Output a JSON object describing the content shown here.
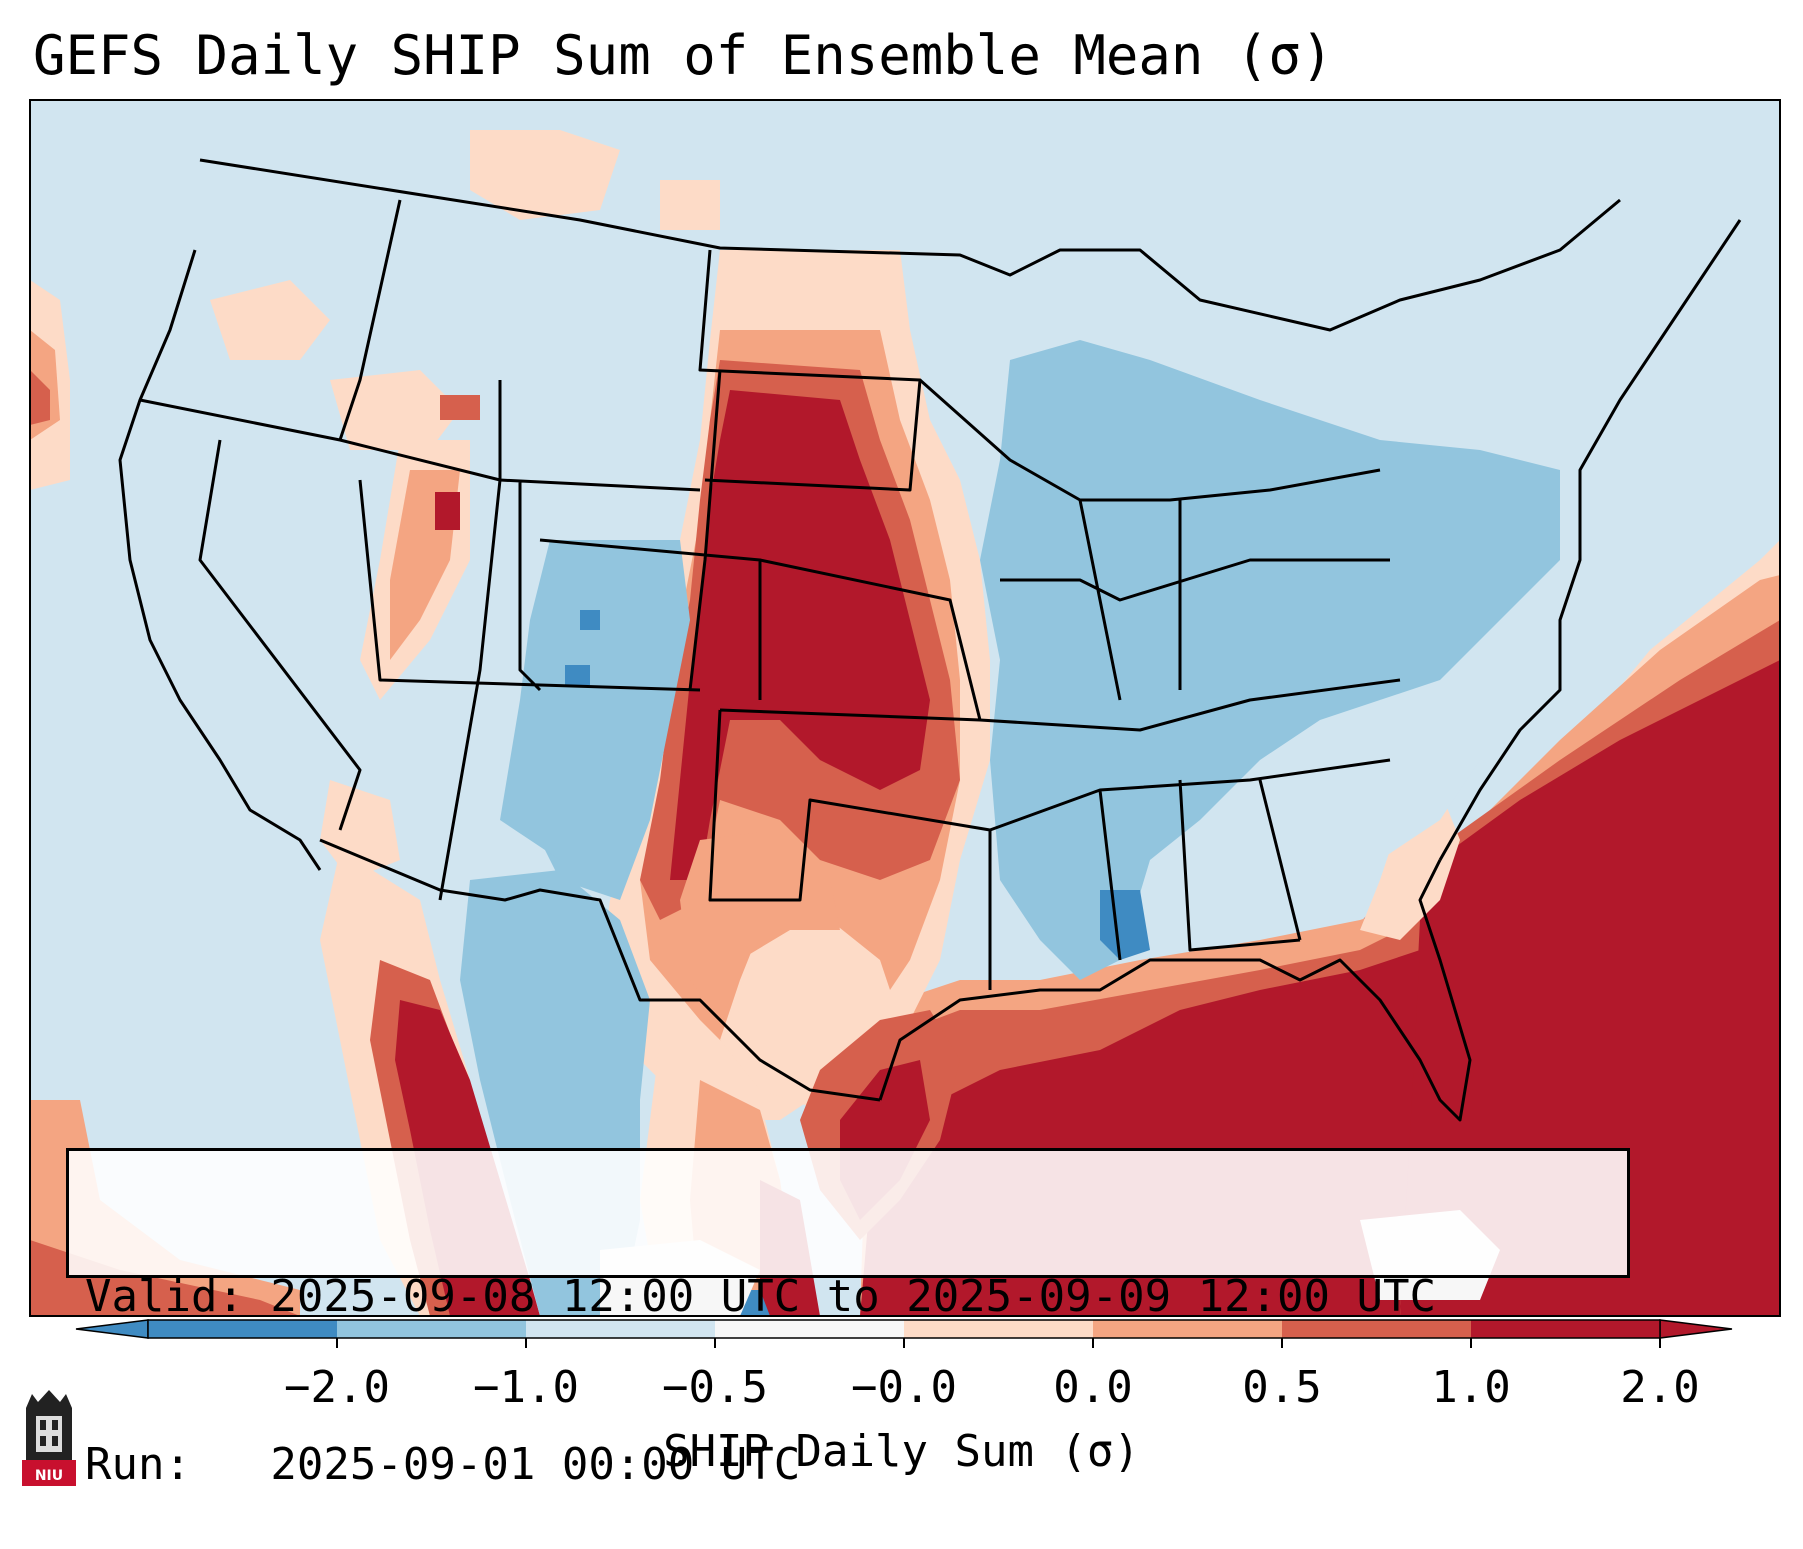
{
  "title": "GEFS Daily SHIP Sum of Ensemble Mean (σ)",
  "info": {
    "valid_line": "Valid: 2025-09-08 12:00 UTC to 2025-09-09 12:00 UTC",
    "run_line": "Run:   2025-09-01 00:00 UTC"
  },
  "colorbar": {
    "label": "SHIP Daily Sum (σ)",
    "tick_labels": [
      "−2.0",
      "−1.0",
      "−0.5",
      "−0.0",
      "0.0",
      "0.5",
      "1.0",
      "2.0"
    ],
    "colors": [
      "#3f8bc2",
      "#92c5de",
      "#d1e5f0",
      "#f7f7f7",
      "#fddbc7",
      "#f4a582",
      "#d6604d",
      "#b2182b"
    ],
    "extend": "both"
  },
  "logo": {
    "text": "NIU",
    "icon": "university-tower-icon"
  },
  "chart_data": {
    "type": "heatmap",
    "title": "GEFS Daily SHIP Sum of Ensemble Mean (σ)",
    "variable": "SHIP Daily Sum (σ)",
    "levels": [
      -2.0,
      -1.0,
      -0.5,
      0.0,
      0.0,
      0.5,
      1.0,
      2.0
    ],
    "regions": [
      {
        "name": "background-near-normal-negative",
        "class": -0.25
      },
      {
        "name": "northern-plains-core",
        "class": 2.0
      },
      {
        "name": "central-plains-kansas-oklahoma",
        "class": 2.0
      },
      {
        "name": "eastern-colorado-new-mexico-border",
        "class": 2.0
      },
      {
        "name": "texas-panhandle-west-texas",
        "class": 0.75
      },
      {
        "name": "central-texas",
        "class": 0.25
      },
      {
        "name": "gulf-of-mexico",
        "class": 2.0
      },
      {
        "name": "western-atlantic",
        "class": 2.0
      },
      {
        "name": "mexico-sierra-madre-oriental",
        "class": 2.0
      },
      {
        "name": "great-lakes-ohio-valley",
        "class": -0.75
      },
      {
        "name": "southeast-us",
        "class": -0.75
      },
      {
        "name": "lower-mississippi-valley",
        "class": -1.5
      },
      {
        "name": "colorado-western-kansas-strip",
        "class": -0.75
      },
      {
        "name": "northern-mexico-plateau",
        "class": -0.75
      },
      {
        "name": "utah-wasatch",
        "class": 0.75
      },
      {
        "name": "pacific-northwest-patches",
        "class": 0.25
      }
    ]
  }
}
